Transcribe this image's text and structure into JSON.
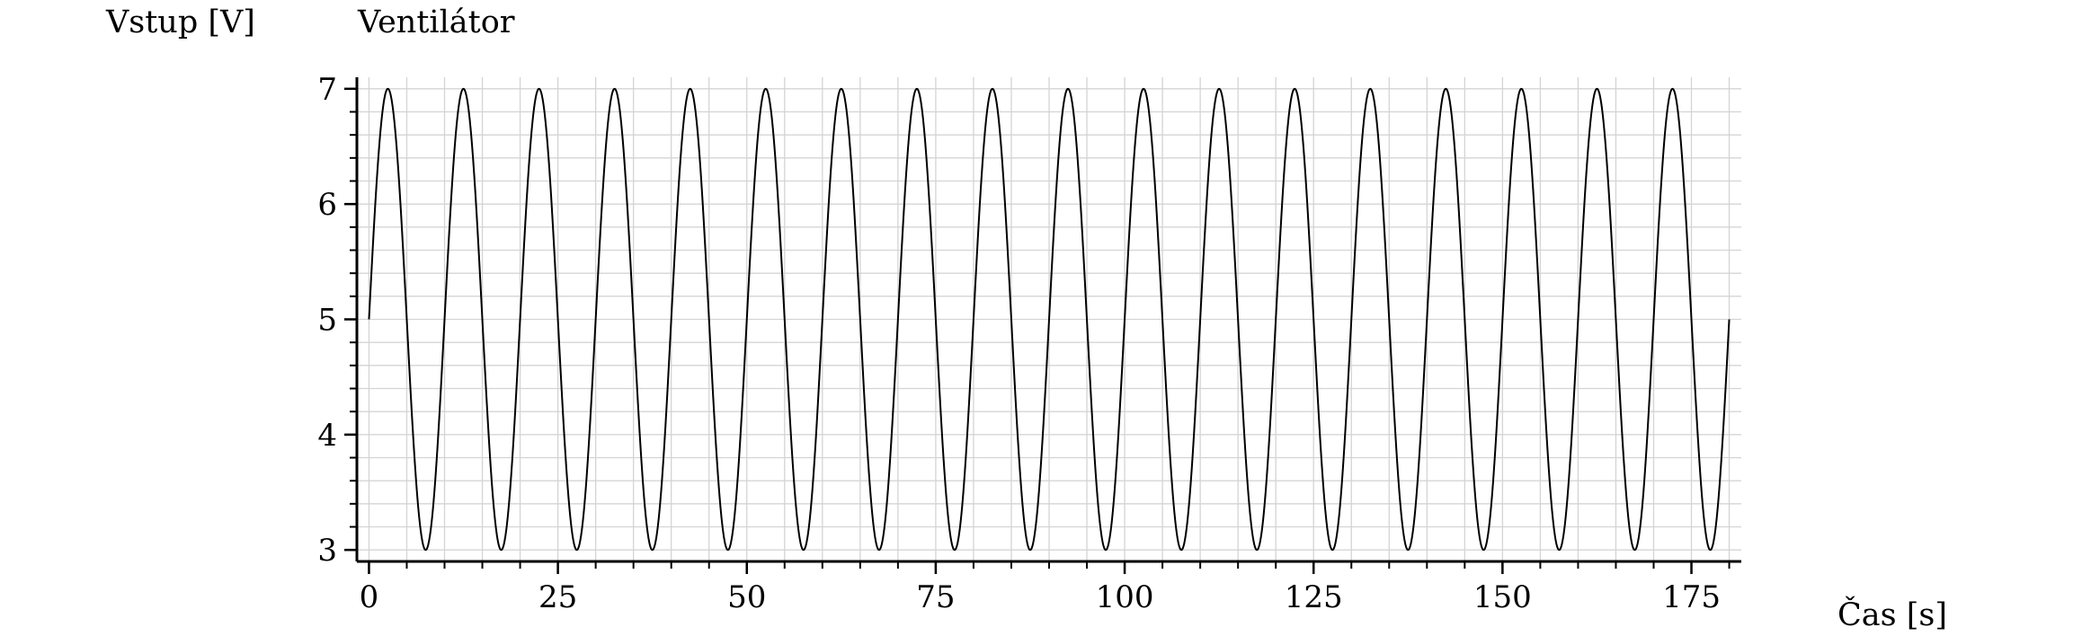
{
  "chart_data": {
    "type": "line",
    "title": "Ventilátor",
    "xlabel": "Čas [s]",
    "ylabel": "Vstup [V]",
    "xlim": [
      -1.6,
      181.6
    ],
    "ylim": [
      2.9,
      7.1
    ],
    "xticks": [
      0,
      25,
      50,
      75,
      100,
      125,
      150,
      175
    ],
    "yticks": [
      3,
      4,
      5,
      6,
      7
    ],
    "x_minor_step": 5,
    "y_minor_step": 0.2,
    "grid": true,
    "legend": "none",
    "series": [
      {
        "function": "sine",
        "offset": 5,
        "amplitude": 2,
        "period": 10,
        "x_start": 0,
        "x_end": 180,
        "color": "#000000"
      }
    ]
  }
}
